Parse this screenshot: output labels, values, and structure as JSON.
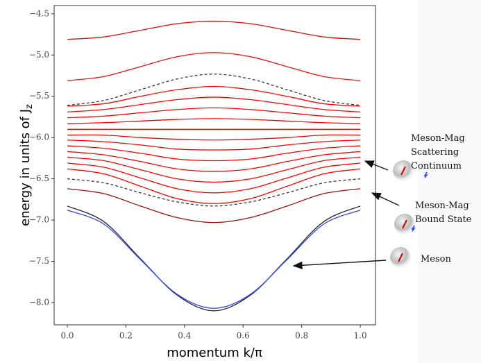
{
  "chart_data": {
    "type": "line",
    "x": [
      0,
      0.125,
      0.25,
      0.375,
      0.5,
      0.625,
      0.75,
      0.875,
      1
    ],
    "xlim": [
      -0.045,
      1.052
    ],
    "xticks": [
      {
        "value": 0,
        "label": "0.0"
      },
      {
        "value": 0.2,
        "label": "0.2"
      },
      {
        "value": 0.4,
        "label": "0.4"
      },
      {
        "value": 0.6,
        "label": "0.6"
      },
      {
        "value": 0.8,
        "label": "0.8"
      },
      {
        "value": 1,
        "label": "1.0"
      }
    ],
    "ylim": [
      -8.27,
      -4.4
    ],
    "yticks": [
      {
        "value": -4.5,
        "label": "−4.5"
      },
      {
        "value": -5,
        "label": "−5.0"
      },
      {
        "value": -5.5,
        "label": "−5.5"
      },
      {
        "value": -6,
        "label": "−6.0"
      },
      {
        "value": -6.5,
        "label": "−6.5"
      },
      {
        "value": -7,
        "label": "−7.0"
      },
      {
        "value": -7.5,
        "label": "−7.5"
      },
      {
        "value": -8,
        "label": "−8.0"
      }
    ],
    "xlabel": "momentum k/π",
    "ylabel": "energy in units of J",
    "ylabel_subscript": "z",
    "annotations": [
      [
        "Meson-Mag",
        "Scattering",
        "Continuum"
      ],
      [
        "Meson-Mag",
        "Bound State"
      ],
      [
        "Meson"
      ]
    ],
    "series": [
      {
        "color": "#d81010",
        "values": [
          -4.81,
          -4.78,
          -4.7,
          -4.62,
          -4.59,
          -4.62,
          -4.7,
          -4.78,
          -4.81
        ]
      },
      {
        "color": "#e81010",
        "values": [
          -5.31,
          -5.26,
          -5.14,
          -5.02,
          -4.97,
          -5.02,
          -5.14,
          -5.26,
          -5.31
        ]
      },
      {
        "color": "#333333",
        "dashed": true,
        "values": [
          -5.61,
          -5.55,
          -5.42,
          -5.29,
          -5.23,
          -5.29,
          -5.42,
          -5.55,
          -5.61
        ]
      },
      {
        "color": "#ff0000",
        "values": [
          -5.62,
          -5.59,
          -5.5,
          -5.42,
          -5.38,
          -5.42,
          -5.5,
          -5.59,
          -5.62
        ]
      },
      {
        "color": "#ff0000",
        "values": [
          -5.69,
          -5.66,
          -5.6,
          -5.54,
          -5.51,
          -5.54,
          -5.6,
          -5.66,
          -5.69
        ]
      },
      {
        "color": "#ff0000",
        "values": [
          -5.76,
          -5.74,
          -5.7,
          -5.66,
          -5.64,
          -5.66,
          -5.7,
          -5.74,
          -5.76
        ]
      },
      {
        "color": "#ff0000",
        "values": [
          -5.83,
          -5.82,
          -5.8,
          -5.78,
          -5.77,
          -5.78,
          -5.8,
          -5.82,
          -5.83
        ]
      },
      {
        "color": "#ff0000",
        "values": [
          -5.9,
          -5.9,
          -5.9,
          -5.9,
          -5.9,
          -5.9,
          -5.9,
          -5.9,
          -5.9
        ]
      },
      {
        "color": "#ff0000",
        "values": [
          -5.97,
          -5.97,
          -6,
          -6.02,
          -6.03,
          -6.02,
          -6,
          -5.97,
          -5.97
        ]
      },
      {
        "color": "#ff0000",
        "values": [
          -6.03,
          -6.05,
          -6.09,
          -6.14,
          -6.15,
          -6.14,
          -6.09,
          -6.05,
          -6.03
        ]
      },
      {
        "color": "#ff0000",
        "values": [
          -6.1,
          -6.13,
          -6.19,
          -6.26,
          -6.28,
          -6.26,
          -6.19,
          -6.13,
          -6.1
        ]
      },
      {
        "color": "#ff0000",
        "values": [
          -6.17,
          -6.21,
          -6.29,
          -6.38,
          -6.41,
          -6.38,
          -6.29,
          -6.21,
          -6.17
        ]
      },
      {
        "color": "#ff0000",
        "values": [
          -6.24,
          -6.28,
          -6.39,
          -6.5,
          -6.54,
          -6.5,
          -6.39,
          -6.28,
          -6.24
        ]
      },
      {
        "color": "#ff0000",
        "values": [
          -6.31,
          -6.36,
          -6.49,
          -6.62,
          -6.67,
          -6.62,
          -6.49,
          -6.36,
          -6.31
        ]
      },
      {
        "color": "#ff0000",
        "values": [
          -6.38,
          -6.44,
          -6.59,
          -6.74,
          -6.8,
          -6.74,
          -6.59,
          -6.44,
          -6.38
        ]
      },
      {
        "color": "#333333",
        "dashed": true,
        "values": [
          -6.5,
          -6.55,
          -6.67,
          -6.78,
          -6.83,
          -6.78,
          -6.67,
          -6.55,
          -6.5
        ]
      },
      {
        "color": "#9a1010",
        "values": [
          -6.62,
          -6.68,
          -6.83,
          -6.97,
          -7.03,
          -6.97,
          -6.83,
          -6.68,
          -6.62
        ]
      },
      {
        "color": "#222222",
        "values": [
          -6.83,
          -7.02,
          -7.47,
          -7.91,
          -8.1,
          -7.91,
          -7.47,
          -7.02,
          -6.83
        ]
      },
      {
        "color": "#3344ee",
        "values": [
          -6.88,
          -7.05,
          -7.48,
          -7.9,
          -8.07,
          -7.9,
          -7.48,
          -7.05,
          -6.88
        ]
      }
    ]
  }
}
